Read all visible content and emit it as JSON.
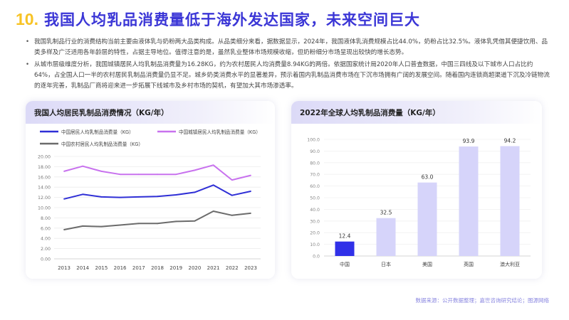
{
  "header": {
    "number": "10.",
    "title": "我国人均乳品消费量低于海外发达国家，未来空间巨大"
  },
  "bullets": [
    "我国乳制品行业的消费结构当前主要由液体乳与奶粉两大品类构成。从品类细分来看，据数据显示，2024年，我国液体乳消费规模占比44.0%，奶粉占比32.5%。液体乳凭借其便捷饮用、品类多样及广泛适用各年龄层的特性，占据主导地位。值得注意的是，虽然乳业整体市场规模收缩，但奶粉细分市场呈现出较快的增长态势。",
    "从城市层级维度分析，我国城镇居民人均乳制品消费量为16.28KG，约为农村居民人均消费量8.94KG的两倍。依据国家统计局2020年人口普查数据，中国三四线及以下城市人口占比约64%，占全国人口一半的农村居民乳制品消费量仍显不足。城乡奶类消费水平的显著差异，预示着国内乳制品消费市场在下沉市场拥有广阔的发展空间。随着国内连锁商超渠道下沉及冷链物流的逐年完善，乳制品厂商将迎来进一步拓展下线城市及乡村市场的契机，有望加大其市场渗透率。"
  ],
  "line_card": {
    "title": "我国人均居民乳制品消费情况（KG/年）"
  },
  "bar_card": {
    "title": "2022年全球人均乳制品消费量（KG/年）"
  },
  "source": "数据来源：公开数据整理；嘉世咨询研究结论；图源网络",
  "colors": {
    "national": "#2f2fd6",
    "urban": "#c872ee",
    "rural": "#6b6b6b",
    "bar_china": "#3030e8",
    "bar_other": "#d6d4fa"
  },
  "chart_data": [
    {
      "type": "line",
      "title": "我国人均居民乳制品消费情况（KG/年）",
      "x": [
        "2013",
        "2014",
        "2015",
        "2016",
        "2017",
        "2018",
        "2019",
        "2020",
        "2021",
        "2022",
        "2023"
      ],
      "ylim": [
        0,
        20
      ],
      "yticks": [
        "0.00",
        "2.00",
        "4.00",
        "6.00",
        "8.00",
        "10.00",
        "12.00",
        "14.00",
        "16.00",
        "18.00",
        "20.00"
      ],
      "legend_position": "top-left",
      "series": [
        {
          "name": "中国居民人均乳制品消费量（KG）",
          "color": "#2f2fd6",
          "values": [
            11.7,
            12.6,
            12.1,
            12.0,
            12.1,
            12.2,
            12.5,
            13.0,
            14.4,
            12.4,
            13.2
          ]
        },
        {
          "name": "中国城镇居民人均乳制品消费量（KG）",
          "color": "#c872ee",
          "values": [
            17.1,
            18.1,
            17.1,
            16.5,
            16.5,
            16.5,
            16.5,
            17.3,
            18.3,
            15.4,
            16.3
          ]
        },
        {
          "name": "中国农村居民人均乳制品消费量（KG）",
          "color": "#6b6b6b",
          "values": [
            5.7,
            6.4,
            6.3,
            6.6,
            6.9,
            6.9,
            7.3,
            7.4,
            9.3,
            8.5,
            8.9
          ]
        }
      ]
    },
    {
      "type": "bar",
      "title": "2022年全球人均乳制品消费量（KG/年）",
      "categories": [
        "中国",
        "日本",
        "美国",
        "英国",
        "澳大利亚"
      ],
      "values": [
        12.4,
        32.5,
        63.0,
        93.9,
        94.2
      ],
      "value_labels": [
        "12.4",
        "32.5",
        "63.0",
        "93.9",
        "94.2"
      ],
      "ylim": [
        0,
        100
      ],
      "yticks": [
        "0.0",
        "10.0",
        "20.0",
        "30.0",
        "40.0",
        "50.0",
        "60.0",
        "70.0",
        "80.0",
        "90.0",
        "100.0"
      ]
    }
  ]
}
